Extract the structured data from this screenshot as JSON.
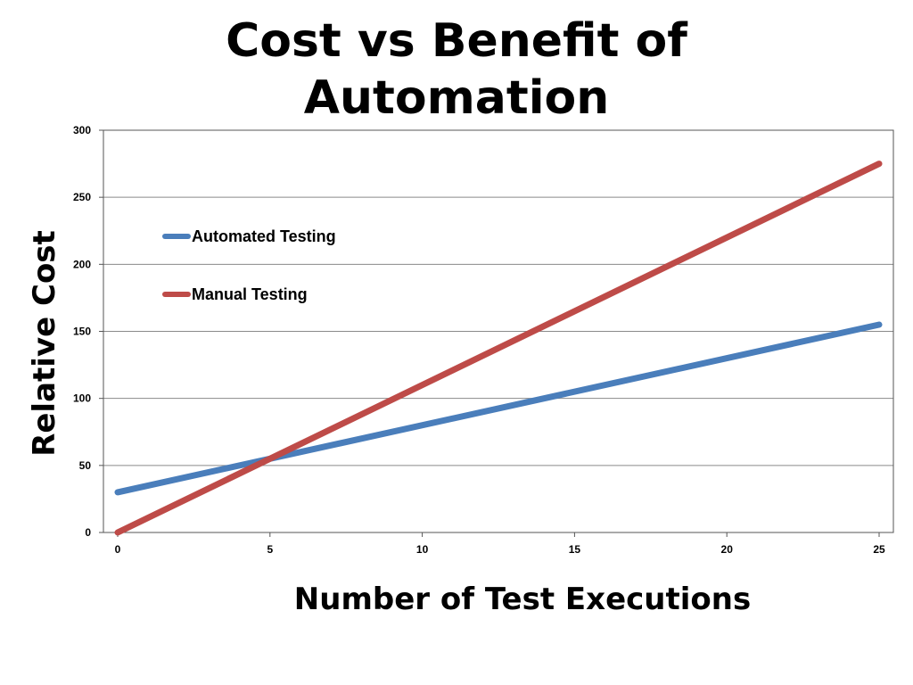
{
  "chart_data": {
    "type": "line",
    "title_lines": [
      "Cost vs Benefit of",
      "Automation"
    ],
    "xlabel": "Number of Test Executions",
    "ylabel": "Relative Cost",
    "xlim": [
      0,
      25
    ],
    "ylim": [
      0,
      300
    ],
    "x_ticks": [
      0,
      5,
      10,
      15,
      20,
      25
    ],
    "y_ticks": [
      0,
      50,
      100,
      150,
      200,
      250,
      300
    ],
    "grid": "horizontal",
    "legend_position": "top-left",
    "series": [
      {
        "name": "Automated Testing",
        "color": "#4a7ebb",
        "x": [
          0,
          25
        ],
        "y": [
          30,
          155
        ]
      },
      {
        "name": "Manual Testing",
        "color": "#be4b48",
        "x": [
          0,
          25
        ],
        "y": [
          0,
          275
        ]
      }
    ]
  }
}
